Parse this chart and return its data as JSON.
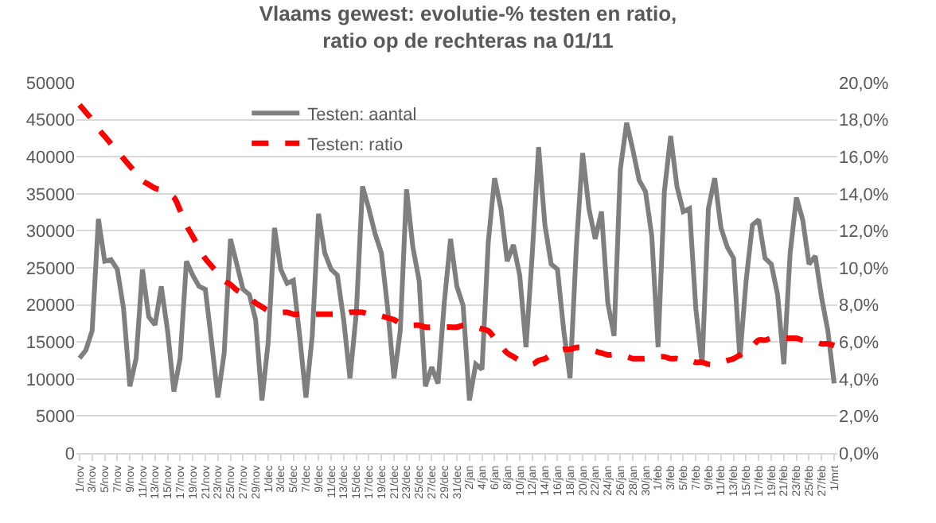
{
  "chart_data": {
    "type": "line",
    "title": "Vlaams gewest: evolutie-% testen en ratio,\nratio op de rechteras na 01/11",
    "categories": [
      "1/nov",
      null,
      "3/nov",
      null,
      "5/nov",
      null,
      "7/nov",
      null,
      "9/nov",
      null,
      "11/nov",
      null,
      "13/nov",
      null,
      "15/nov",
      null,
      "17/nov",
      null,
      "19/nov",
      null,
      "21/nov",
      null,
      "23/nov",
      null,
      "25/nov",
      null,
      "27/nov",
      null,
      "29/nov",
      null,
      "1/dec",
      null,
      "3/dec",
      null,
      "5/dec",
      null,
      "7/dec",
      null,
      "9/dec",
      null,
      "11/dec",
      null,
      "13/dec",
      null,
      "15/dec",
      null,
      "17/dec",
      null,
      "19/dec",
      null,
      "21/dec",
      null,
      "23/dec",
      null,
      "25/dec",
      null,
      "27/dec",
      null,
      "29/dec",
      null,
      "31/dec",
      null,
      "2/jan",
      null,
      "4/jan",
      null,
      "6/jan",
      null,
      "8/jan",
      null,
      "10/jan",
      null,
      "12/jan",
      null,
      "14/jan",
      null,
      "16/jan",
      null,
      "18/jan",
      null,
      "20/jan",
      null,
      "22/jan",
      null,
      "24/jan",
      null,
      "26/jan",
      null,
      "28/jan",
      null,
      "30/jan",
      null,
      "1/feb",
      null,
      "3/feb",
      null,
      "5/feb",
      null,
      "7/feb",
      null,
      "9/feb",
      null,
      "11/feb",
      null,
      "13/feb",
      null,
      "15/feb",
      null,
      "17/feb",
      null,
      "19/feb",
      null,
      "21/feb",
      null,
      "23/feb",
      null,
      "25/feb",
      null,
      "27/feb",
      null,
      "1/mrt"
    ],
    "series": [
      {
        "name": "Testen: aantal",
        "color": "#7f7f7f",
        "line_style": "solid",
        "values": [
          12800,
          13900,
          16500,
          31600,
          25900,
          26100,
          24800,
          19500,
          9000,
          12800,
          24800,
          18400,
          17300,
          22500,
          16500,
          8300,
          12800,
          25900,
          24000,
          22500,
          22100,
          15000,
          7500,
          13500,
          28900,
          25500,
          22100,
          21400,
          18000,
          7100,
          15000,
          30400,
          24800,
          22900,
          23300,
          15800,
          7500,
          15800,
          32300,
          27000,
          24800,
          24000,
          18000,
          10100,
          18800,
          36000,
          33000,
          29600,
          27000,
          19500,
          10100,
          16500,
          35600,
          27800,
          23300,
          9000,
          11600,
          9400,
          20300,
          28900,
          22500,
          19900,
          7100,
          12000,
          11300,
          28500,
          37100,
          33000,
          25900,
          28100,
          24000,
          14300,
          27000,
          41300,
          30800,
          25500,
          24800,
          16500,
          10100,
          27800,
          40500,
          33000,
          28900,
          32600,
          20300,
          15800,
          38300,
          44600,
          40900,
          36800,
          35300,
          29300,
          14300,
          35300,
          42800,
          36000,
          32600,
          33000,
          19500,
          12000,
          33000,
          37100,
          30400,
          27800,
          26300,
          12800,
          23300,
          30800,
          31500,
          26300,
          25500,
          21400,
          12000,
          27000,
          34500,
          31500,
          25500,
          26600,
          21000,
          16500,
          9400
        ]
      },
      {
        "name": "Testen: ratio",
        "color": "#ff0000",
        "line_style": "dashed",
        "axis": "y2",
        "values": [
          18.8,
          18.4,
          18.0,
          17.5,
          17.1,
          16.7,
          16.3,
          15.9,
          15.5,
          15.1,
          14.7,
          14.5,
          14.3,
          14.2,
          14.0,
          13.8,
          13.1,
          12.3,
          11.7,
          11.1,
          10.5,
          10.1,
          9.7,
          9.3,
          9.1,
          8.8,
          8.6,
          8.4,
          8.1,
          7.9,
          7.7,
          7.7,
          7.6,
          7.6,
          7.5,
          7.5,
          7.5,
          7.5,
          7.5,
          7.5,
          7.5,
          7.5,
          7.5,
          7.6,
          7.6,
          7.6,
          7.5,
          7.5,
          7.4,
          7.3,
          7.2,
          7.0,
          6.9,
          6.9,
          6.9,
          6.8,
          6.8,
          6.8,
          6.8,
          6.8,
          6.8,
          6.9,
          6.9,
          6.8,
          6.7,
          6.6,
          6.2,
          5.8,
          5.4,
          5.2,
          5.0,
          4.9,
          4.8,
          5.0,
          5.1,
          5.3,
          5.5,
          5.6,
          5.6,
          5.7,
          5.7,
          5.6,
          5.5,
          5.4,
          5.3,
          5.3,
          5.2,
          5.2,
          5.1,
          5.1,
          5.1,
          5.2,
          5.2,
          5.2,
          5.1,
          5.1,
          5.0,
          5.0,
          4.9,
          4.9,
          4.8,
          4.8,
          4.9,
          5.0,
          5.1,
          5.3,
          5.6,
          5.8,
          6.1,
          6.1,
          6.2,
          6.2,
          6.2,
          6.2,
          6.2,
          6.1,
          6.1,
          6.0,
          5.9,
          5.9,
          5.8
        ]
      }
    ],
    "ylim": [
      0,
      50000
    ],
    "yticks": [
      0,
      5000,
      10000,
      15000,
      20000,
      25000,
      30000,
      35000,
      40000,
      45000,
      50000
    ],
    "y2lim": [
      0,
      20
    ],
    "y2ticks": [
      {
        "value": 0,
        "label": "0,0%"
      },
      {
        "value": 2,
        "label": "2,0%"
      },
      {
        "value": 4,
        "label": "4,0%"
      },
      {
        "value": 6,
        "label": "6,0%"
      },
      {
        "value": 8,
        "label": "8,0%"
      },
      {
        "value": 10,
        "label": "10,0%"
      },
      {
        "value": 12,
        "label": "12,0%"
      },
      {
        "value": 14,
        "label": "14,0%"
      },
      {
        "value": 16,
        "label": "16,0%"
      },
      {
        "value": 18,
        "label": "18,0%"
      },
      {
        "value": 20,
        "label": "20,0%"
      }
    ],
    "grid": "y",
    "legend": "top",
    "marker": "none"
  }
}
